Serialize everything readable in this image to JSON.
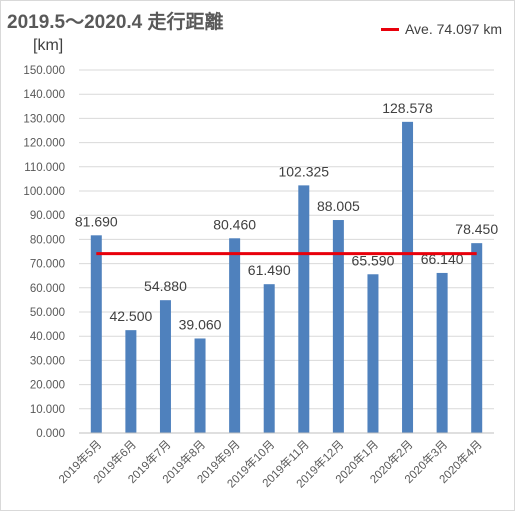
{
  "chart_data": {
    "type": "bar",
    "title": "2019.5～2020.4 走行距離",
    "ylabel": "[km]",
    "ylim": [
      0,
      150
    ],
    "yticks": [
      "0.000",
      "10.000",
      "20.000",
      "30.000",
      "40.000",
      "50.000",
      "60.000",
      "70.000",
      "80.000",
      "90.000",
      "100.000",
      "110.000",
      "120.000",
      "130.000",
      "140.000",
      "150.000"
    ],
    "categories": [
      "2019年5月",
      "2019年6月",
      "2019年7月",
      "2019年8月",
      "2019年9月",
      "2019年10月",
      "2019年11月",
      "2019年12月",
      "2020年1月",
      "2020年2月",
      "2020年3月",
      "2020年4月"
    ],
    "values": [
      81.69,
      42.5,
      54.88,
      39.06,
      80.46,
      61.49,
      102.325,
      88.005,
      65.59,
      128.578,
      66.14,
      78.45
    ],
    "value_labels": [
      "81.690",
      "42.500",
      "54.880",
      "39.060",
      "80.460",
      "61.490",
      "102.325",
      "88.005",
      "65.590",
      "128.578",
      "66.140",
      "78.450"
    ],
    "average": {
      "value": 74.097,
      "label": "Ave. 74.097 km",
      "color": "#e8000b"
    },
    "bar_color": "#4f81bd",
    "grid": true,
    "legend_position": "top-right"
  }
}
